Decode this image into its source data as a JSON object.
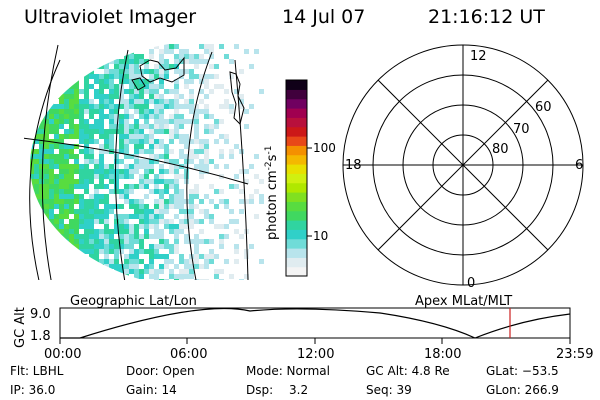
{
  "header": {
    "title": "Ultraviolet Imager",
    "date": "14 Jul 07",
    "time": "21:16:12 UT"
  },
  "colorbar": {
    "label_main": "photon cm",
    "label_exp1": "-2",
    "label_mid": "s",
    "label_exp2": "-1",
    "ticks": [
      "100",
      "10"
    ],
    "colors": [
      "#f4f4f4",
      "#e0ecf0",
      "#b8e4ec",
      "#70dcd8",
      "#30d0c8",
      "#30d4a0",
      "#40d860",
      "#58dc40",
      "#80e020",
      "#b0e800",
      "#d0f010",
      "#e8e000",
      "#f4b800",
      "#f49000",
      "#e84818",
      "#cc1818",
      "#b8103c",
      "#a00050",
      "#700060",
      "#40003c",
      "#100018"
    ]
  },
  "polar": {
    "mlt_labels": {
      "top": "12",
      "left": "18",
      "right": "6",
      "bottom": "0"
    },
    "lat_labels": [
      "60",
      "70",
      "80"
    ]
  },
  "timeline": {
    "left_label": "Geographic Lat/Lon",
    "right_label": "Apex MLat/MLT",
    "y_axis_label": "GC Alt",
    "y_ticks": [
      "9.0",
      "1.8"
    ],
    "x_ticks": [
      "00:00",
      "06:00",
      "12:00",
      "18:00",
      "23:59"
    ],
    "marker_color": "#cc2020"
  },
  "info": {
    "flt": "Flt: LBHL",
    "door": "Door: Open",
    "mode": "Mode: Normal",
    "gc_alt": "GC Alt: 4.8 Re",
    "glat": "GLat: −53.5",
    "ip": "IP: 36.0",
    "gain": "Gain: 14",
    "dsp_label": "Dsp:",
    "dsp_value": "3.2",
    "seq": "Seq: 39",
    "glon": "GLon: 266.9"
  }
}
